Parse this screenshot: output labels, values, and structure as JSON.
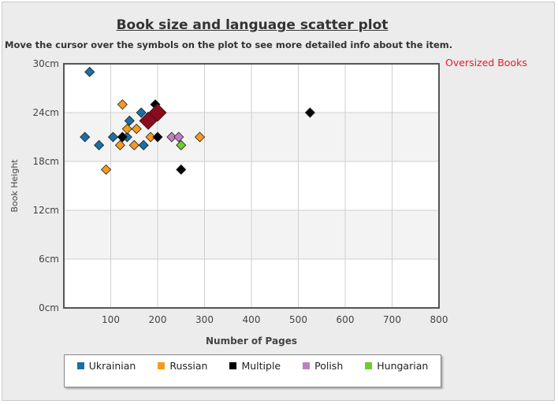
{
  "title": "Book size and language scatter plot",
  "subtitle": "Move the cursor over the symbols on the plot to see more detailed info about the item.",
  "oversized_link": "Oversized Books",
  "chart_data": {
    "type": "scatter",
    "xlabel": "Number of Pages",
    "ylabel": "Book Height",
    "xlim": [
      0,
      800
    ],
    "ylim": [
      0,
      30
    ],
    "x_ticks": [
      "100",
      "200",
      "300",
      "400",
      "500",
      "600",
      "700",
      "800"
    ],
    "x_tick_values": [
      100,
      200,
      300,
      400,
      500,
      600,
      700,
      800
    ],
    "y_ticks": [
      "0cm",
      "6cm",
      "12cm",
      "18cm",
      "24cm",
      "30cm"
    ],
    "y_tick_values": [
      0,
      6,
      12,
      18,
      24,
      30
    ],
    "grid": true,
    "legend_position": "bottom",
    "series": [
      {
        "name": "Ukrainian",
        "color": "#1a6fa3",
        "points": [
          [
            55,
            29
          ],
          [
            45,
            21
          ],
          [
            75,
            20
          ],
          [
            105,
            21
          ],
          [
            125,
            21
          ],
          [
            135,
            21
          ],
          [
            140,
            23
          ],
          [
            165,
            24
          ],
          [
            170,
            20
          ]
        ]
      },
      {
        "name": "Russian",
        "color": "#f59a1e",
        "points": [
          [
            90,
            17
          ],
          [
            120,
            20
          ],
          [
            125,
            25
          ],
          [
            135,
            22
          ],
          [
            150,
            20
          ],
          [
            155,
            22
          ],
          [
            185,
            21
          ],
          [
            290,
            21
          ]
        ]
      },
      {
        "name": "Multiple",
        "color": "#000000",
        "points": [
          [
            125,
            21
          ],
          [
            195,
            25
          ],
          [
            200,
            21
          ],
          [
            250,
            17
          ],
          [
            525,
            24
          ]
        ]
      },
      {
        "name": "Polish",
        "color": "#c080c0",
        "points": [
          [
            230,
            21
          ],
          [
            245,
            21
          ]
        ]
      },
      {
        "name": "Hungarian",
        "color": "#6fcc2b",
        "points": [
          [
            250,
            20
          ]
        ]
      }
    ],
    "highlighted": [
      {
        "color": "#8b0a1e",
        "points": [
          [
            180,
            23
          ],
          [
            200,
            24
          ]
        ]
      }
    ]
  }
}
